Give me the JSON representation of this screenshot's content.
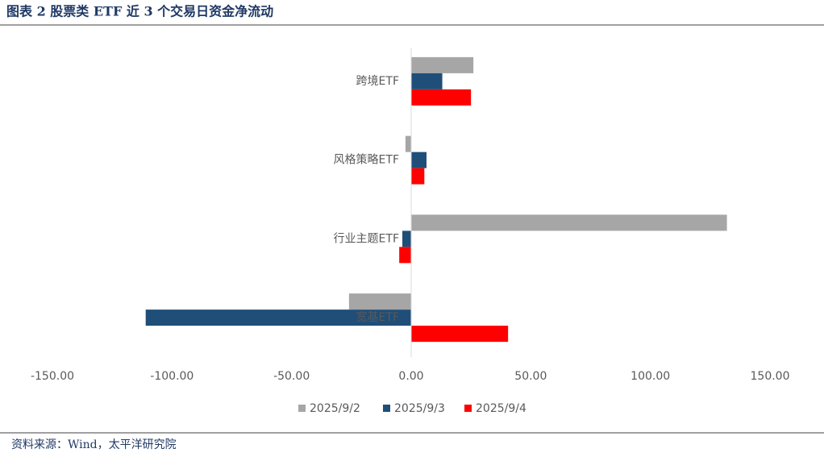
{
  "chart_data": {
    "type": "hbar",
    "title": "图表 2 股票类 ETF 近 3 个交易日资金净流动",
    "source": "资料来源：Wind，太平洋研究院",
    "categories": [
      "跨境ETF",
      "风格策略ETF",
      "行业主题ETF",
      "宽基ETF"
    ],
    "series": [
      {
        "name": "2025/9/2",
        "color": "#a6a6a6",
        "values": [
          26,
          -2.4,
          132,
          -26
        ]
      },
      {
        "name": "2025/9/3",
        "color": "#1f4e79",
        "values": [
          13,
          6.4,
          -3.7,
          -111
        ]
      },
      {
        "name": "2025/9/4",
        "color": "#ff0000",
        "values": [
          25,
          5.5,
          -5,
          40.5
        ]
      }
    ],
    "xlim": [
      -150,
      150
    ],
    "xticks": [
      {
        "value": -150,
        "label": "-150.00"
      },
      {
        "value": -100,
        "label": "-100.00"
      },
      {
        "value": -50,
        "label": "-50.00"
      },
      {
        "value": 0,
        "label": "0.00"
      },
      {
        "value": 50,
        "label": "50.00"
      },
      {
        "value": 100,
        "label": "100.00"
      },
      {
        "value": 150,
        "label": "150.00"
      }
    ],
    "legend": "bottom"
  }
}
